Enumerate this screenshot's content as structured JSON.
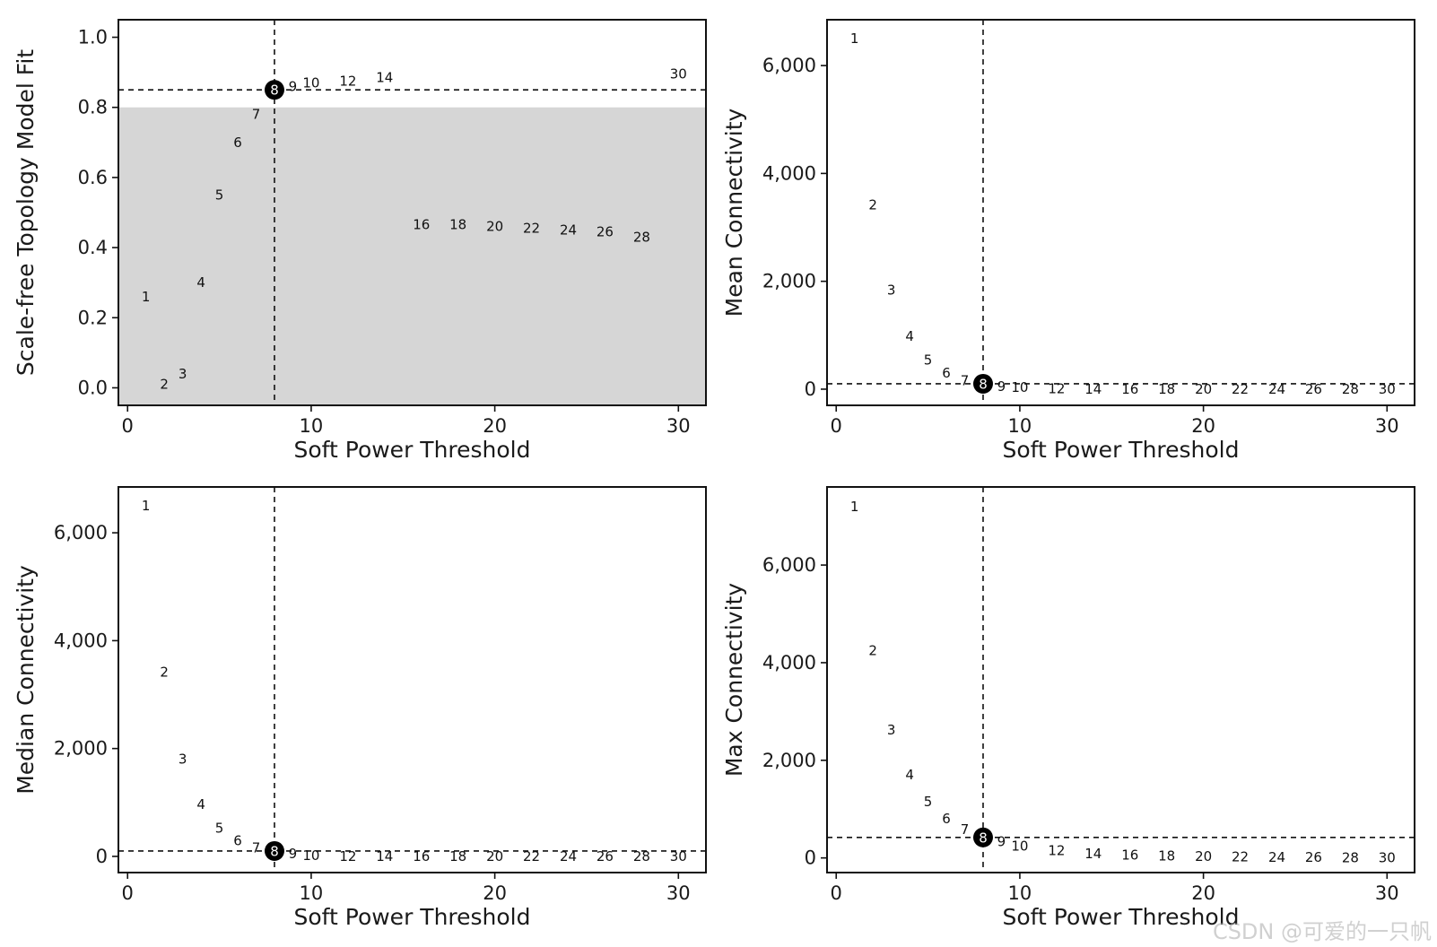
{
  "colors": {
    "shade": "#d6d6d6",
    "axis": "#111111",
    "text": "#1a1a1a",
    "selected_marker": "#000000"
  },
  "watermark": "CSDN @可爱的一只帆",
  "chart_data": [
    {
      "type": "scatter",
      "xlabel": "Soft Power Threshold",
      "ylabel": "Scale-free Topology Model Fit",
      "xlim": [
        -0.5,
        31.5
      ],
      "ylim": [
        -0.05,
        1.05
      ],
      "xticks": [
        0,
        10,
        20,
        30
      ],
      "xtick_labels": [
        "0",
        "10",
        "20",
        "30"
      ],
      "yticks": [
        0.0,
        0.2,
        0.4,
        0.6,
        0.8,
        1.0
      ],
      "ytick_labels": [
        "0.0",
        "0.2",
        "0.4",
        "0.6",
        "0.8",
        "1.0"
      ],
      "shaded_region": {
        "y_from": -0.05,
        "y_to": 0.8
      },
      "vline_x": 8,
      "hline_y": 0.85,
      "selected_power": 8,
      "x": [
        1,
        2,
        3,
        4,
        5,
        6,
        7,
        8,
        9,
        10,
        12,
        14,
        16,
        18,
        20,
        22,
        24,
        26,
        28,
        30
      ],
      "y": [
        0.26,
        0.01,
        0.04,
        0.3,
        0.55,
        0.7,
        0.78,
        0.85,
        0.86,
        0.87,
        0.875,
        0.885,
        0.465,
        0.465,
        0.46,
        0.455,
        0.45,
        0.445,
        0.43,
        0.895
      ],
      "labels": [
        "1",
        "2",
        "3",
        "4",
        "5",
        "6",
        "7",
        "8",
        "9",
        "10",
        "12",
        "14",
        "16",
        "18",
        "20",
        "22",
        "24",
        "26",
        "28",
        "30"
      ]
    },
    {
      "type": "scatter",
      "xlabel": "Soft Power Threshold",
      "ylabel": "Mean Connectivity",
      "xlim": [
        -0.5,
        31.5
      ],
      "ylim": [
        -300,
        6850
      ],
      "xticks": [
        0,
        10,
        20,
        30
      ],
      "xtick_labels": [
        "0",
        "10",
        "20",
        "30"
      ],
      "yticks": [
        0,
        2000,
        4000,
        6000
      ],
      "ytick_labels": [
        "0",
        "2,000",
        "4,000",
        "6,000"
      ],
      "vline_x": 8,
      "hline_y": 100,
      "selected_power": 8,
      "x": [
        1,
        2,
        3,
        4,
        5,
        6,
        7,
        8,
        9,
        10,
        12,
        14,
        16,
        18,
        20,
        22,
        24,
        26,
        28,
        30
      ],
      "y": [
        6500,
        3420,
        1840,
        980,
        540,
        300,
        160,
        100,
        50,
        30,
        10,
        0,
        0,
        0,
        0,
        0,
        0,
        0,
        0,
        0
      ],
      "labels": [
        "1",
        "2",
        "3",
        "4",
        "5",
        "6",
        "7",
        "8",
        "9",
        "10",
        "12",
        "14",
        "16",
        "18",
        "20",
        "22",
        "24",
        "26",
        "28",
        "30"
      ]
    },
    {
      "type": "scatter",
      "xlabel": "Soft Power Threshold",
      "ylabel": "Median Connectivity",
      "xlim": [
        -0.5,
        31.5
      ],
      "ylim": [
        -300,
        6850
      ],
      "xticks": [
        0,
        10,
        20,
        30
      ],
      "xtick_labels": [
        "0",
        "10",
        "20",
        "30"
      ],
      "yticks": [
        0,
        2000,
        4000,
        6000
      ],
      "ytick_labels": [
        "0",
        "2,000",
        "4,000",
        "6,000"
      ],
      "vline_x": 8,
      "hline_y": 100,
      "selected_power": 8,
      "x": [
        1,
        2,
        3,
        4,
        5,
        6,
        7,
        8,
        9,
        10,
        12,
        14,
        16,
        18,
        20,
        22,
        24,
        26,
        28,
        30
      ],
      "y": [
        6500,
        3420,
        1800,
        960,
        520,
        290,
        160,
        100,
        50,
        20,
        0,
        0,
        0,
        0,
        0,
        0,
        0,
        0,
        0,
        0
      ],
      "labels": [
        "1",
        "2",
        "3",
        "4",
        "5",
        "6",
        "7",
        "8",
        "9",
        "10",
        "12",
        "14",
        "16",
        "18",
        "20",
        "22",
        "24",
        "26",
        "28",
        "30"
      ]
    },
    {
      "type": "scatter",
      "xlabel": "Soft Power Threshold",
      "ylabel": "Max Connectivity",
      "xlim": [
        -0.5,
        31.5
      ],
      "ylim": [
        -300,
        7600
      ],
      "xticks": [
        0,
        10,
        20,
        30
      ],
      "xtick_labels": [
        "0",
        "10",
        "20",
        "30"
      ],
      "yticks": [
        0,
        2000,
        4000,
        6000
      ],
      "ytick_labels": [
        "0",
        "2,000",
        "4,000",
        "6,000"
      ],
      "vline_x": 8,
      "hline_y": 420,
      "selected_power": 8,
      "x": [
        1,
        2,
        3,
        4,
        5,
        6,
        7,
        8,
        9,
        10,
        12,
        14,
        16,
        18,
        20,
        22,
        24,
        26,
        28,
        30
      ],
      "y": [
        7200,
        4250,
        2620,
        1700,
        1150,
        800,
        580,
        420,
        330,
        240,
        150,
        90,
        60,
        40,
        30,
        20,
        10,
        10,
        5,
        5
      ],
      "labels": [
        "1",
        "2",
        "3",
        "4",
        "5",
        "6",
        "7",
        "8",
        "9",
        "10",
        "12",
        "14",
        "16",
        "18",
        "20",
        "22",
        "24",
        "26",
        "28",
        "30"
      ]
    }
  ]
}
